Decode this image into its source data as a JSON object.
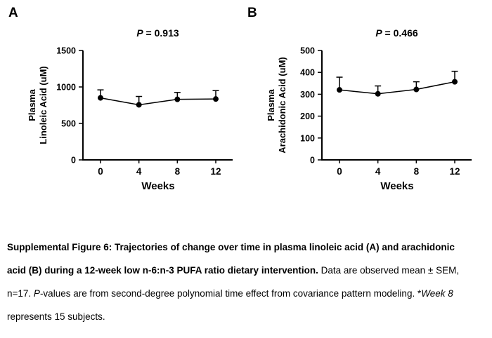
{
  "figure": {
    "panels": [
      {
        "letter": "A"
      },
      {
        "letter": "B"
      }
    ]
  },
  "chart_data": [
    {
      "type": "line",
      "panel": "A",
      "title": "P = 0.913",
      "xlabel": "Weeks",
      "ylabel_lines": [
        "Plasma",
        "Linoleic Acid (uM)"
      ],
      "ylim": [
        0,
        1500
      ],
      "yticks": [
        0,
        500,
        1000,
        1500
      ],
      "xticks": [
        0,
        4,
        8,
        12
      ],
      "x": [
        0,
        4,
        8,
        12
      ],
      "values": [
        850,
        755,
        830,
        835
      ],
      "sem_upper": [
        110,
        115,
        95,
        115
      ],
      "grid": false,
      "marker": "filled-circle",
      "line_color": "#000000"
    },
    {
      "type": "line",
      "panel": "B",
      "title": "P = 0.466",
      "xlabel": "Weeks",
      "ylabel_lines": [
        "Plasma",
        "Arachidonic Acid (uM)"
      ],
      "ylim": [
        0,
        500
      ],
      "yticks": [
        0,
        100,
        200,
        300,
        400,
        500
      ],
      "xticks": [
        0,
        4,
        8,
        12
      ],
      "x": [
        0,
        4,
        8,
        12
      ],
      "values": [
        320,
        302,
        322,
        357
      ],
      "sem_upper": [
        58,
        36,
        35,
        48
      ],
      "grid": false,
      "marker": "filled-circle",
      "line_color": "#000000"
    }
  ],
  "caption": {
    "segments": [
      {
        "text": "Supplemental Figure 6: Trajectories of change over time in plasma linoleic acid (A) and arachidonic acid (B) during a 12-week low n-6:n-3 PUFA ratio dietary intervention.",
        "bold": true
      },
      {
        "text": " Data are observed mean ± SEM, n=17. ",
        "bold": false
      },
      {
        "text": "P",
        "italic": true
      },
      {
        "text": "-values are from second-degree polynomial time effect from covariance pattern modeling. *",
        "bold": false
      },
      {
        "text": "Week 8",
        "italic": true
      },
      {
        "text": " represents 15 subjects.",
        "bold": false
      }
    ]
  }
}
